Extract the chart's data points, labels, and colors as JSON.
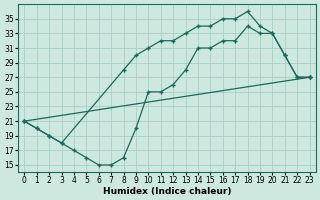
{
  "bg_color": "#cce8df",
  "grid_color": "#aacfc7",
  "line_color": "#1a6b5a",
  "line_width": 0.9,
  "marker": "+",
  "marker_size": 3.5,
  "xlabel": "Humidex (Indice chaleur)",
  "xlabel_fontsize": 6.5,
  "tick_fontsize": 5.5,
  "ylim": [
    14,
    37
  ],
  "xlim": [
    -0.5,
    23.5
  ],
  "yticks": [
    15,
    17,
    19,
    21,
    23,
    25,
    27,
    29,
    31,
    33,
    35
  ],
  "xticks": [
    0,
    1,
    2,
    3,
    4,
    5,
    6,
    7,
    8,
    9,
    10,
    11,
    12,
    13,
    14,
    15,
    16,
    17,
    18,
    19,
    20,
    21,
    22,
    23
  ],
  "line1_x": [
    0,
    1,
    2,
    3,
    4,
    5,
    6,
    7,
    8,
    9,
    10,
    11,
    12,
    13,
    14,
    15,
    16,
    17,
    18,
    19,
    20,
    21,
    22,
    23
  ],
  "line1_y": [
    21,
    20,
    19,
    18,
    17,
    16,
    15,
    15,
    16,
    20,
    25,
    25,
    26,
    28,
    31,
    31,
    32,
    32,
    34,
    33,
    33,
    30,
    27,
    27
  ],
  "line2_x": [
    0,
    1,
    2,
    3,
    8,
    9,
    10,
    11,
    12,
    13,
    14,
    15,
    16,
    17,
    18,
    19,
    20,
    21,
    22,
    23
  ],
  "line2_y": [
    21,
    20,
    19,
    18,
    28,
    30,
    31,
    32,
    32,
    33,
    34,
    34,
    35,
    35,
    36,
    34,
    33,
    30,
    27,
    27
  ],
  "line3_x": [
    0,
    23
  ],
  "line3_y": [
    21,
    27
  ]
}
